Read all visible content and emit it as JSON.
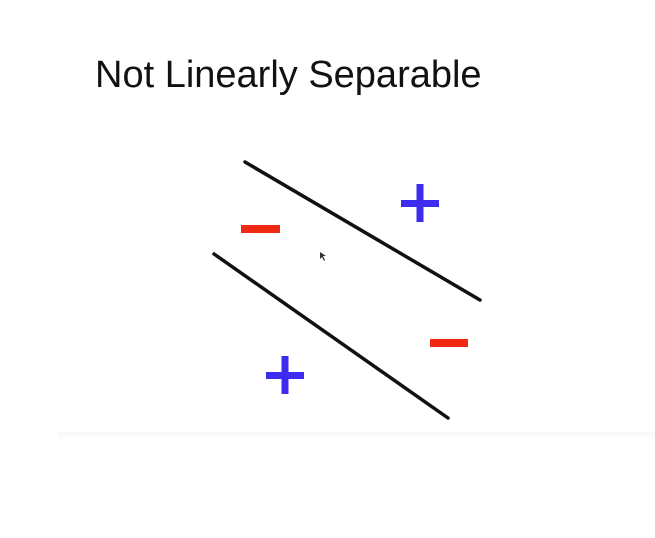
{
  "slide": {
    "title": "Not Linearly Separable"
  },
  "colors": {
    "positive": "#3d2cf0",
    "negative": "#f02a12",
    "boundary": "#111111",
    "title_text": "#111111"
  },
  "diagram": {
    "boundaries": [
      "upper-boundary-line",
      "lower-boundary-line"
    ],
    "points": [
      {
        "class": "positive",
        "symbol": "+",
        "region": "upper-right"
      },
      {
        "class": "negative",
        "symbol": "−",
        "region": "between-lines-left"
      },
      {
        "class": "negative",
        "symbol": "−",
        "region": "between-lines-right"
      },
      {
        "class": "positive",
        "symbol": "+",
        "region": "lower-left"
      }
    ]
  }
}
